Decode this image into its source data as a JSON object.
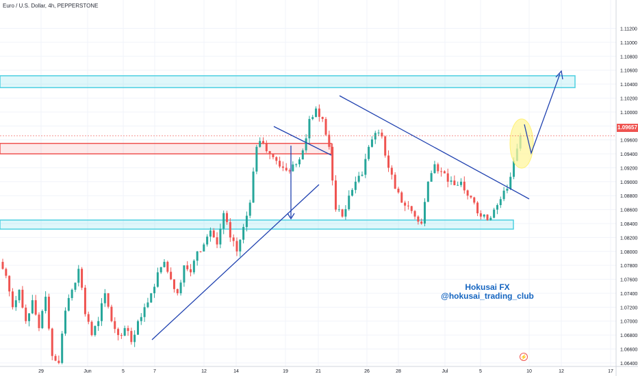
{
  "header": {
    "title": "Euro / U.S. Dollar, 4h, PEPPERSTONE"
  },
  "watermark": {
    "line1": "Hokusai FX",
    "line2": "@hokusai_trading_club"
  },
  "price_axis": {
    "last_price": "1.09657",
    "labels": [
      "1.11200",
      "1.11000",
      "1.10800",
      "1.10600",
      "1.10400",
      "1.10200",
      "1.10000",
      "1.09800",
      "1.09600",
      "1.09400",
      "1.09200",
      "1.09000",
      "1.08800",
      "1.08600",
      "1.08400",
      "1.08200",
      "1.08000",
      "1.07800",
      "1.07600",
      "1.07400",
      "1.07200",
      "1.07000",
      "1.06800",
      "1.06600",
      "1.06400"
    ]
  },
  "icons": {
    "flash": "lightning-icon"
  },
  "colors": {
    "up": "#26a69a",
    "down": "#ef5350",
    "zone_blue": "#4dd0e1",
    "zone_red": "#ef5350",
    "trend": "#1e40af",
    "highlight": "#fff59d"
  },
  "chart_data": {
    "type": "candlestick",
    "title": "Euro / U.S. Dollar, 4h, PEPPERSTONE",
    "ylim": [
      1.0635,
      1.1145
    ],
    "x_ticks": [
      "29",
      "Jun",
      "5",
      "7",
      "12",
      "14",
      "19",
      "21",
      "26",
      "28",
      "Jul",
      "5",
      "10",
      "12",
      "17"
    ],
    "last_price": 1.09657,
    "path": [
      1.0785,
      1.0765,
      1.072,
      1.0745,
      1.07,
      1.073,
      1.069,
      1.0735,
      1.065,
      1.064,
      1.0715,
      1.0745,
      1.0775,
      1.071,
      1.068,
      1.07,
      1.074,
      1.07,
      1.068,
      1.069,
      1.067,
      1.07,
      1.072,
      1.074,
      1.077,
      1.0785,
      1.076,
      1.074,
      1.078,
      1.077,
      1.08,
      1.081,
      1.083,
      1.081,
      1.0855,
      1.082,
      1.08,
      1.0835,
      1.087,
      1.095,
      1.0955,
      1.094,
      1.093,
      1.092,
      1.0915,
      1.0925,
      1.0945,
      1.099,
      1.1005,
      1.099,
      1.095,
      1.086,
      1.085,
      1.088,
      1.09,
      1.091,
      1.095,
      1.097,
      1.0965,
      1.092,
      1.089,
      1.087,
      1.0865,
      1.085,
      1.084,
      1.09,
      1.0925,
      1.0915,
      1.09,
      1.0895,
      1.09,
      1.088,
      1.087,
      1.085,
      1.0845,
      1.086,
      1.0875,
      1.089,
      1.093,
      1.0966
    ]
  }
}
